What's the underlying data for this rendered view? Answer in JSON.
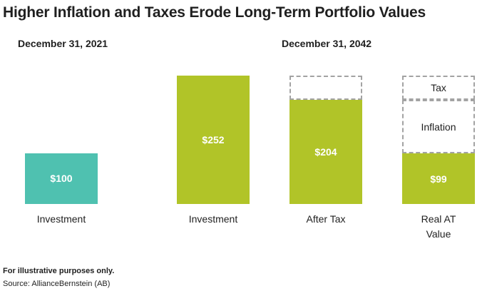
{
  "title": "Higher Inflation and Taxes Erode Long-Term Portfolio Values",
  "date_left": "December 31, 2021",
  "date_right": "December 31, 2042",
  "chart_data": {
    "type": "bar",
    "title": "Higher Inflation and Taxes Erode Long-Term Portfolio Values",
    "categories": [
      "Investment",
      "Investment",
      "After Tax",
      "Real AT Value"
    ],
    "groups": [
      "December 31, 2021",
      "December 31, 2042",
      "December 31, 2042",
      "December 31, 2042"
    ],
    "values": [
      100,
      252,
      204,
      99
    ],
    "value_labels": [
      "$100",
      "$252",
      "$204",
      "$99"
    ],
    "colors": [
      "#4fc1b0",
      "#b1c428",
      "#b1c428",
      "#b1c428"
    ],
    "erosion": [
      {
        "category": "After Tax",
        "label": "",
        "from": 204,
        "to": 252
      },
      {
        "category": "Real AT Value",
        "label": "Inflation",
        "from": 99,
        "to": 204
      },
      {
        "category": "Real AT Value",
        "label": "Tax",
        "from": 204,
        "to": 252
      }
    ],
    "ylim": [
      0,
      252
    ],
    "grid": false,
    "xlabel": "",
    "ylabel": ""
  },
  "footnote": "For illustrative purposes only.",
  "source": "Source: AllianceBernstein (AB)"
}
